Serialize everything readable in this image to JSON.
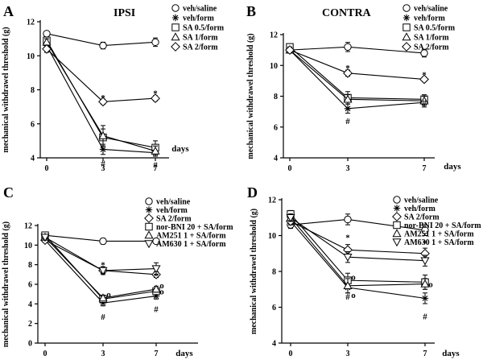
{
  "chart_data": [
    {
      "panel": "A",
      "title": "IPSI",
      "type": "line",
      "xlabel": "days",
      "ylabel": "mechanical withdrawel threshold (g)",
      "categories": [
        "0",
        "3",
        "7"
      ],
      "ylim": [
        4,
        12
      ],
      "yticks": [
        "4",
        "6",
        "8",
        "10",
        "12"
      ],
      "series": [
        {
          "name": "veh/saline",
          "marker": "circle",
          "values": [
            11.3,
            10.6,
            10.8
          ],
          "err": [
            0.15,
            0.2,
            0.25
          ]
        },
        {
          "name": "veh/form",
          "marker": "asterisk",
          "values": [
            10.6,
            4.5,
            4.3
          ],
          "err": [
            0.2,
            0.3,
            0.2
          ]
        },
        {
          "name": "SA 0.5/form",
          "marker": "square",
          "values": [
            10.9,
            5.2,
            4.6
          ],
          "err": [
            0.2,
            0.5,
            0.4
          ]
        },
        {
          "name": "SA 1/form",
          "marker": "triangle",
          "values": [
            10.8,
            5.3,
            4.4
          ],
          "err": [
            0.2,
            0.6,
            0.3
          ]
        },
        {
          "name": "SA 2/form",
          "marker": "diamond",
          "values": [
            10.4,
            7.3,
            7.5
          ],
          "err": [
            0.2,
            0.15,
            0.15
          ]
        }
      ],
      "annotations": [
        {
          "text": "*",
          "category": "3",
          "value": 7.55
        },
        {
          "text": "*",
          "category": "7",
          "value": 7.8
        },
        {
          "text": "#",
          "category": "3",
          "value": 3.7
        },
        {
          "text": "#",
          "category": "7",
          "value": 3.6
        }
      ]
    },
    {
      "panel": "B",
      "title": "CONTRA",
      "type": "line",
      "xlabel": "days",
      "ylabel": "mechanical withdrawel threshold (g)",
      "categories": [
        "0",
        "3",
        "7"
      ],
      "ylim": [
        4,
        12
      ],
      "yticks": [
        "4",
        "6",
        "8",
        "10",
        "12"
      ],
      "series": [
        {
          "name": "veh/saline",
          "marker": "circle",
          "values": [
            11.0,
            11.2,
            10.8
          ],
          "err": [
            0.2,
            0.3,
            0.25
          ]
        },
        {
          "name": "veh/form",
          "marker": "asterisk",
          "values": [
            11.0,
            7.2,
            7.6
          ],
          "err": [
            0.2,
            0.3,
            0.3
          ]
        },
        {
          "name": "SA 0.5/form",
          "marker": "square",
          "values": [
            11.2,
            7.9,
            7.8
          ],
          "err": [
            0.2,
            0.4,
            0.3
          ]
        },
        {
          "name": "SA 1/form",
          "marker": "triangle",
          "values": [
            11.0,
            7.8,
            7.7
          ],
          "err": [
            0.2,
            0.3,
            0.3
          ]
        },
        {
          "name": "SA 2/form",
          "marker": "diamond",
          "values": [
            11.0,
            9.5,
            9.1
          ],
          "err": [
            0.15,
            0.2,
            0.15
          ]
        }
      ],
      "annotations": [
        {
          "text": "*",
          "category": "3",
          "value": 9.85
        },
        {
          "text": "*",
          "category": "7",
          "value": 9.4
        },
        {
          "text": "#",
          "category": "3",
          "value": 6.4
        },
        {
          "text": "#",
          "category": "7",
          "value": 7.6
        }
      ]
    },
    {
      "panel": "C",
      "title": "",
      "type": "line",
      "xlabel": "days",
      "ylabel": "mechanical withdrawel threshold (g)",
      "categories": [
        "0",
        "3",
        "7"
      ],
      "ylim": [
        0,
        12
      ],
      "yticks": [
        "0",
        "2",
        "4",
        "6",
        "8",
        "10",
        "12"
      ],
      "series": [
        {
          "name": "veh/saline",
          "marker": "circle",
          "values": [
            11.0,
            10.4,
            10.4
          ],
          "err": [
            0.2,
            0.3,
            0.2
          ]
        },
        {
          "name": "veh/form",
          "marker": "asterisk",
          "values": [
            10.5,
            4.1,
            4.8
          ],
          "err": [
            0.2,
            0.3,
            0.3
          ]
        },
        {
          "name": "SA 2/form",
          "marker": "diamond",
          "values": [
            10.5,
            7.4,
            7.0
          ],
          "err": [
            0.2,
            0.3,
            0.3
          ]
        },
        {
          "name": "nor-BNI 20 + SA/form",
          "marker": "square",
          "values": [
            11.0,
            4.5,
            5.3
          ],
          "err": [
            0.2,
            0.3,
            0.3
          ]
        },
        {
          "name": "AM251 1 + SA/form",
          "marker": "triangle",
          "values": [
            10.8,
            4.6,
            5.5
          ],
          "err": [
            0.2,
            0.3,
            0.3
          ]
        },
        {
          "name": "AM630 1 + SA/form",
          "marker": "triangle-down",
          "values": [
            10.8,
            7.4,
            7.6
          ],
          "err": [
            0.2,
            0.4,
            0.6
          ]
        }
      ],
      "annotations": [
        {
          "text": "*",
          "category": "3",
          "value": 8.0
        },
        {
          "text": "*",
          "category": "7",
          "value": 6.9
        },
        {
          "text": "#",
          "category": "3",
          "value": 2.7
        },
        {
          "text": "#",
          "category": "7",
          "value": 3.5
        },
        {
          "text": "o",
          "category": "3",
          "value": 5.0
        },
        {
          "text": "o",
          "category": "7",
          "value": 5.9
        },
        {
          "text": "o",
          "category": "7",
          "value": 5.3
        }
      ]
    },
    {
      "panel": "D",
      "title": "",
      "type": "line",
      "xlabel": "days",
      "ylabel": "mechanical withdrawel threshold (g)",
      "categories": [
        "0",
        "3",
        "7"
      ],
      "ylim": [
        4,
        12
      ],
      "yticks": [
        "4",
        "6",
        "8",
        "10",
        "12"
      ],
      "series": [
        {
          "name": "veh/saline",
          "marker": "circle",
          "values": [
            10.6,
            10.9,
            10.3
          ],
          "err": [
            0.2,
            0.3,
            0.3
          ]
        },
        {
          "name": "veh/form",
          "marker": "asterisk",
          "values": [
            10.8,
            7.1,
            6.5
          ],
          "err": [
            0.2,
            0.3,
            0.3
          ]
        },
        {
          "name": "SA 2/form",
          "marker": "diamond",
          "values": [
            10.8,
            9.2,
            9.0
          ],
          "err": [
            0.2,
            0.3,
            0.3
          ]
        },
        {
          "name": "nor-BNI 20 + SA/form",
          "marker": "square",
          "values": [
            11.2,
            7.5,
            7.4
          ],
          "err": [
            0.2,
            0.4,
            0.4
          ]
        },
        {
          "name": "AM251 1 + SA/form",
          "marker": "triangle",
          "values": [
            11.0,
            7.2,
            7.3
          ],
          "err": [
            0.2,
            0.4,
            0.3
          ]
        },
        {
          "name": "AM630 1 + SA/form",
          "marker": "triangle-down",
          "values": [
            11.0,
            8.8,
            8.6
          ],
          "err": [
            0.2,
            0.3,
            0.3
          ]
        }
      ],
      "annotations": [
        {
          "text": "*",
          "category": "3",
          "value": 9.9
        },
        {
          "text": "*",
          "category": "7",
          "value": 9.6
        },
        {
          "text": "#",
          "category": "3",
          "value": 6.6
        },
        {
          "text": "#",
          "category": "7",
          "value": 5.5
        },
        {
          "text": "o",
          "category": "3",
          "value": 7.7
        },
        {
          "text": "o",
          "category": "3",
          "value": 6.7
        },
        {
          "text": "o",
          "category": "7",
          "value": 7.3
        }
      ]
    }
  ]
}
